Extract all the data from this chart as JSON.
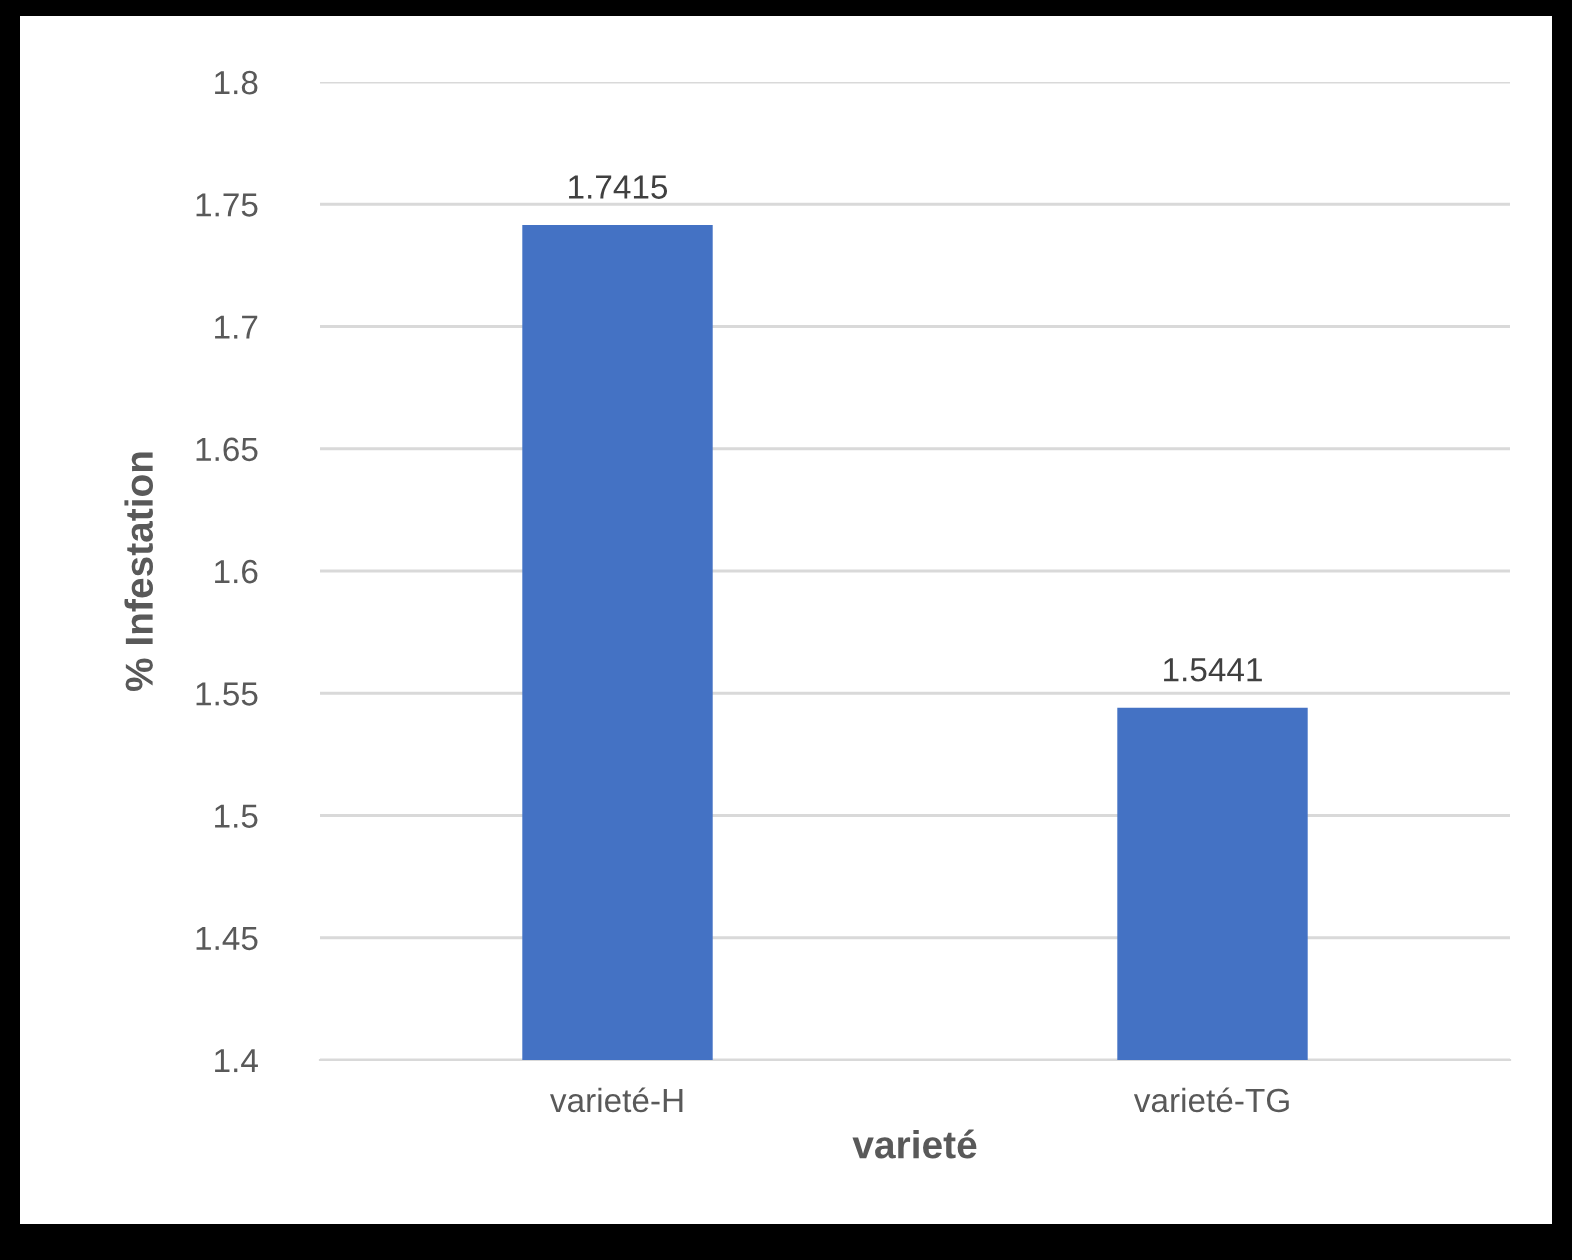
{
  "chart_data": {
    "type": "bar",
    "xlabel": "varieté",
    "ylabel": "% Infestation",
    "categories": [
      "varieté-H",
      "varieté-TG"
    ],
    "values": [
      1.7415,
      1.5441
    ],
    "color": "#4472c4",
    "ylim": [
      1.4,
      1.8
    ],
    "yticks": [
      1.4,
      1.45,
      1.5,
      1.55,
      1.6,
      1.65,
      1.7,
      1.75,
      1.8
    ],
    "grid": "y",
    "data_labels": true
  }
}
